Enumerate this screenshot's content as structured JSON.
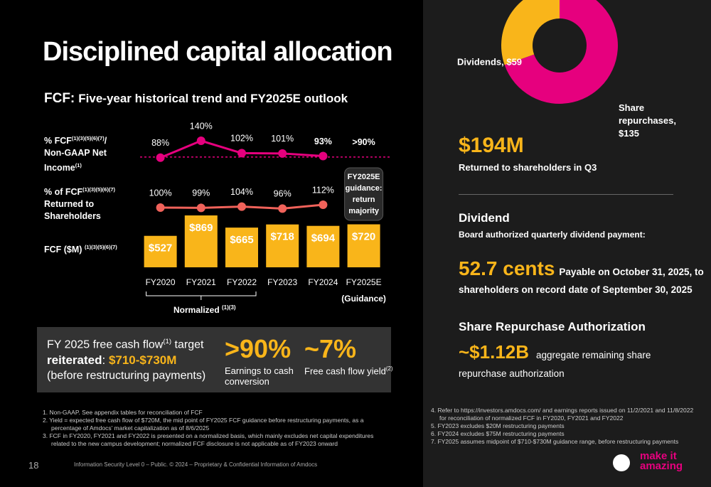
{
  "title": "Disciplined capital allocation",
  "subtitle": {
    "lead": "FCF:",
    "rest": "Five-year historical trend and FY2025E outlook"
  },
  "chart_data": [
    {
      "type": "bar",
      "categories": [
        "FY2020",
        "FY2021",
        "FY2022",
        "FY2023",
        "FY2024",
        "FY2025E"
      ],
      "series": [
        {
          "type": "bar",
          "name_parts": [
            {
              "t": "FCF ($M) "
            },
            {
              "sup": "(1)(3)(5)(6)(7)"
            }
          ],
          "color": "#f9b51a",
          "values": [
            527,
            869,
            665,
            718,
            694,
            720
          ],
          "value_labels": [
            "$527",
            "$869",
            "$665",
            "$718",
            "$694",
            "$720"
          ]
        },
        {
          "type": "line",
          "name_parts": [
            {
              "t": "% FCF"
            },
            {
              "sup": "(1)(3)(5)(6)(7)"
            },
            {
              "t": "/ Non-GAAP Net Income"
            },
            {
              "sup": "(1)"
            }
          ],
          "color": "#e6007e",
          "values": [
            88,
            140,
            102,
            101,
            93,
            null
          ],
          "value_labels": [
            "88%",
            "140%",
            "102%",
            "101%",
            "93%",
            ">90%"
          ],
          "guidance": 90
        },
        {
          "type": "line",
          "name_parts": [
            {
              "t": "% of FCF"
            },
            {
              "sup": "(1)(3)(5)(6)(7)"
            },
            {
              "t": " Returned to Shareholders"
            }
          ],
          "color": "#f0625a",
          "values": [
            100,
            99,
            104,
            96,
            112,
            null
          ],
          "value_labels": [
            "100%",
            "99%",
            "104%",
            "96%",
            "112%"
          ]
        }
      ],
      "ylim": [
        0,
        1000
      ],
      "guidance_box": [
        "FY2025E",
        "guidance:",
        "return",
        "majority"
      ],
      "guidance_label": "(Guidance)",
      "normalized": [
        {
          "t": "Normalized "
        },
        {
          "sup": "(1)(3)"
        }
      ]
    },
    {
      "type": "pie",
      "labels": [
        "Dividends, $59",
        "Share repurchases, $135"
      ],
      "values": [
        59,
        135
      ],
      "colors": [
        "#f9b51a",
        "#e6007e"
      ],
      "donut": true
    }
  ],
  "target": {
    "line1": [
      {
        "t": "FY 2025 free cash flow"
      },
      {
        "sup": "(1)"
      },
      {
        "t": " target"
      }
    ],
    "line2": [
      {
        "b": "reiterated"
      },
      {
        "t": ": "
      },
      {
        "hl": "$710-$730M"
      }
    ],
    "line3": "(before restructuring payments)"
  },
  "kpis": [
    {
      "value": ">90%",
      "label": [
        {
          "t": "Earnings to cash conversion"
        }
      ]
    },
    {
      "value": "~7%",
      "label": [
        {
          "t": "Free cash flow yield"
        },
        {
          "sup": "(2)"
        }
      ]
    }
  ],
  "returned": {
    "amount": "$194M",
    "text": "Returned to shareholders in Q3"
  },
  "dividend": {
    "heading": "Dividend",
    "sub": "Board authorized quarterly dividend payment:",
    "amount": "52.7 cents",
    "text": "Payable on October 31, 2025, to",
    "text2": "shareholders on record date of September 30, 2025"
  },
  "repurchase": {
    "heading": "Share Repurchase Authorization",
    "amount": "~$1.12B",
    "text": "aggregate remaining share",
    "text2": "repurchase authorization"
  },
  "footnotes_left": [
    "1.  Non-GAAP. See appendix tables for reconciliation of FCF",
    "2.  Yield = expected free cash flow of $720M, the mid point of FY2025 FCF guidance before restructuring payments, as a percentage of Amdocs’ market capitalization as of 8/6/2025",
    "3.  FCF in FY2020, FY2021 and FY2022 is presented on a normalized basis, which mainly excludes net capital expenditures related to the new campus development; normalized FCF disclosure is not applicable as of FY2023 onward"
  ],
  "footnotes_right": [
    "4.  Refer to https://investors.amdocs.com/ and earnings reports issued on 11/2/2021 and 11/8/2022 for reconciliation of normalized FCF in FY2020, FY2021 and FY2022",
    "5.  FY2023 excludes $20M restructuring payments",
    "6.  FY2024 excludes $75M restructuring payments",
    "7.  FY2025 assumes midpoint of $710-$730M guidance range, before restructuring payments"
  ],
  "footer": {
    "page": "18",
    "info": "Information Security Level 0 – Public. © 2024 – Proprietary & Confidential Information of Amdocs",
    "logo1": "make it",
    "logo2": "amazing"
  }
}
